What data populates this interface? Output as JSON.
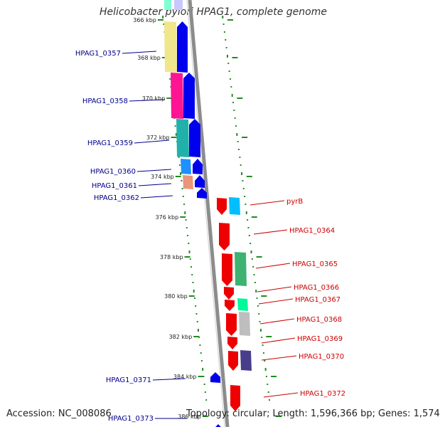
{
  "title": "Helicobacter pylori HPAG1, complete genome",
  "footer": {
    "accession": "Accession: NC_008086",
    "topology": "Topology: circular;",
    "length": "Length: 1,596,366 bp;",
    "genes": "Genes: 1,574"
  },
  "colors": {
    "reverse_strand_gene": "#0000ee",
    "forward_strand_gene": "#ee0000",
    "reverse_label": "#00008b",
    "forward_label": "#cc0000",
    "tick": "#228b22",
    "backbone": "#8c8c8c"
  },
  "scale_labels": [
    "366 kbp",
    "368 kbp",
    "370 kbp",
    "372 kbp",
    "374 kbp",
    "376 kbp",
    "378 kbp",
    "380 kbp",
    "382 kbp",
    "384 kbp",
    "386 kbp"
  ],
  "left_genes": [
    {
      "label": "HPAG1_0357",
      "cog_color": "#f0e68c"
    },
    {
      "label": "HPAG1_0358",
      "cog_color": "#ff1493"
    },
    {
      "label": "HPAG1_0359",
      "cog_color": "#20b2aa"
    },
    {
      "label": "HPAG1_0360",
      "cog_color": "#1e90ff"
    },
    {
      "label": "HPAG1_0361",
      "cog_color": "#e9967a"
    },
    {
      "label": "HPAG1_0362",
      "cog_color": ""
    },
    {
      "label": "HPAG1_0371",
      "cog_color": ""
    },
    {
      "label": "HPAG1_0373",
      "cog_color": ""
    }
  ],
  "right_genes": [
    {
      "label": "pyrB",
      "cog_color": "#00bfff"
    },
    {
      "label": "HPAG1_0364",
      "cog_color": ""
    },
    {
      "label": "HPAG1_0365",
      "cog_color": "#3cb371"
    },
    {
      "label": "HPAG1_0366",
      "cog_color": ""
    },
    {
      "label": "HPAG1_0367",
      "cog_color": "#00fa9a"
    },
    {
      "label": "HPAG1_0368",
      "cog_color": "#bebebe"
    },
    {
      "label": "HPAG1_0369",
      "cog_color": ""
    },
    {
      "label": "HPAG1_0370",
      "cog_color": "#483d8b"
    },
    {
      "label": "HPAG1_0372",
      "cog_color": ""
    }
  ]
}
